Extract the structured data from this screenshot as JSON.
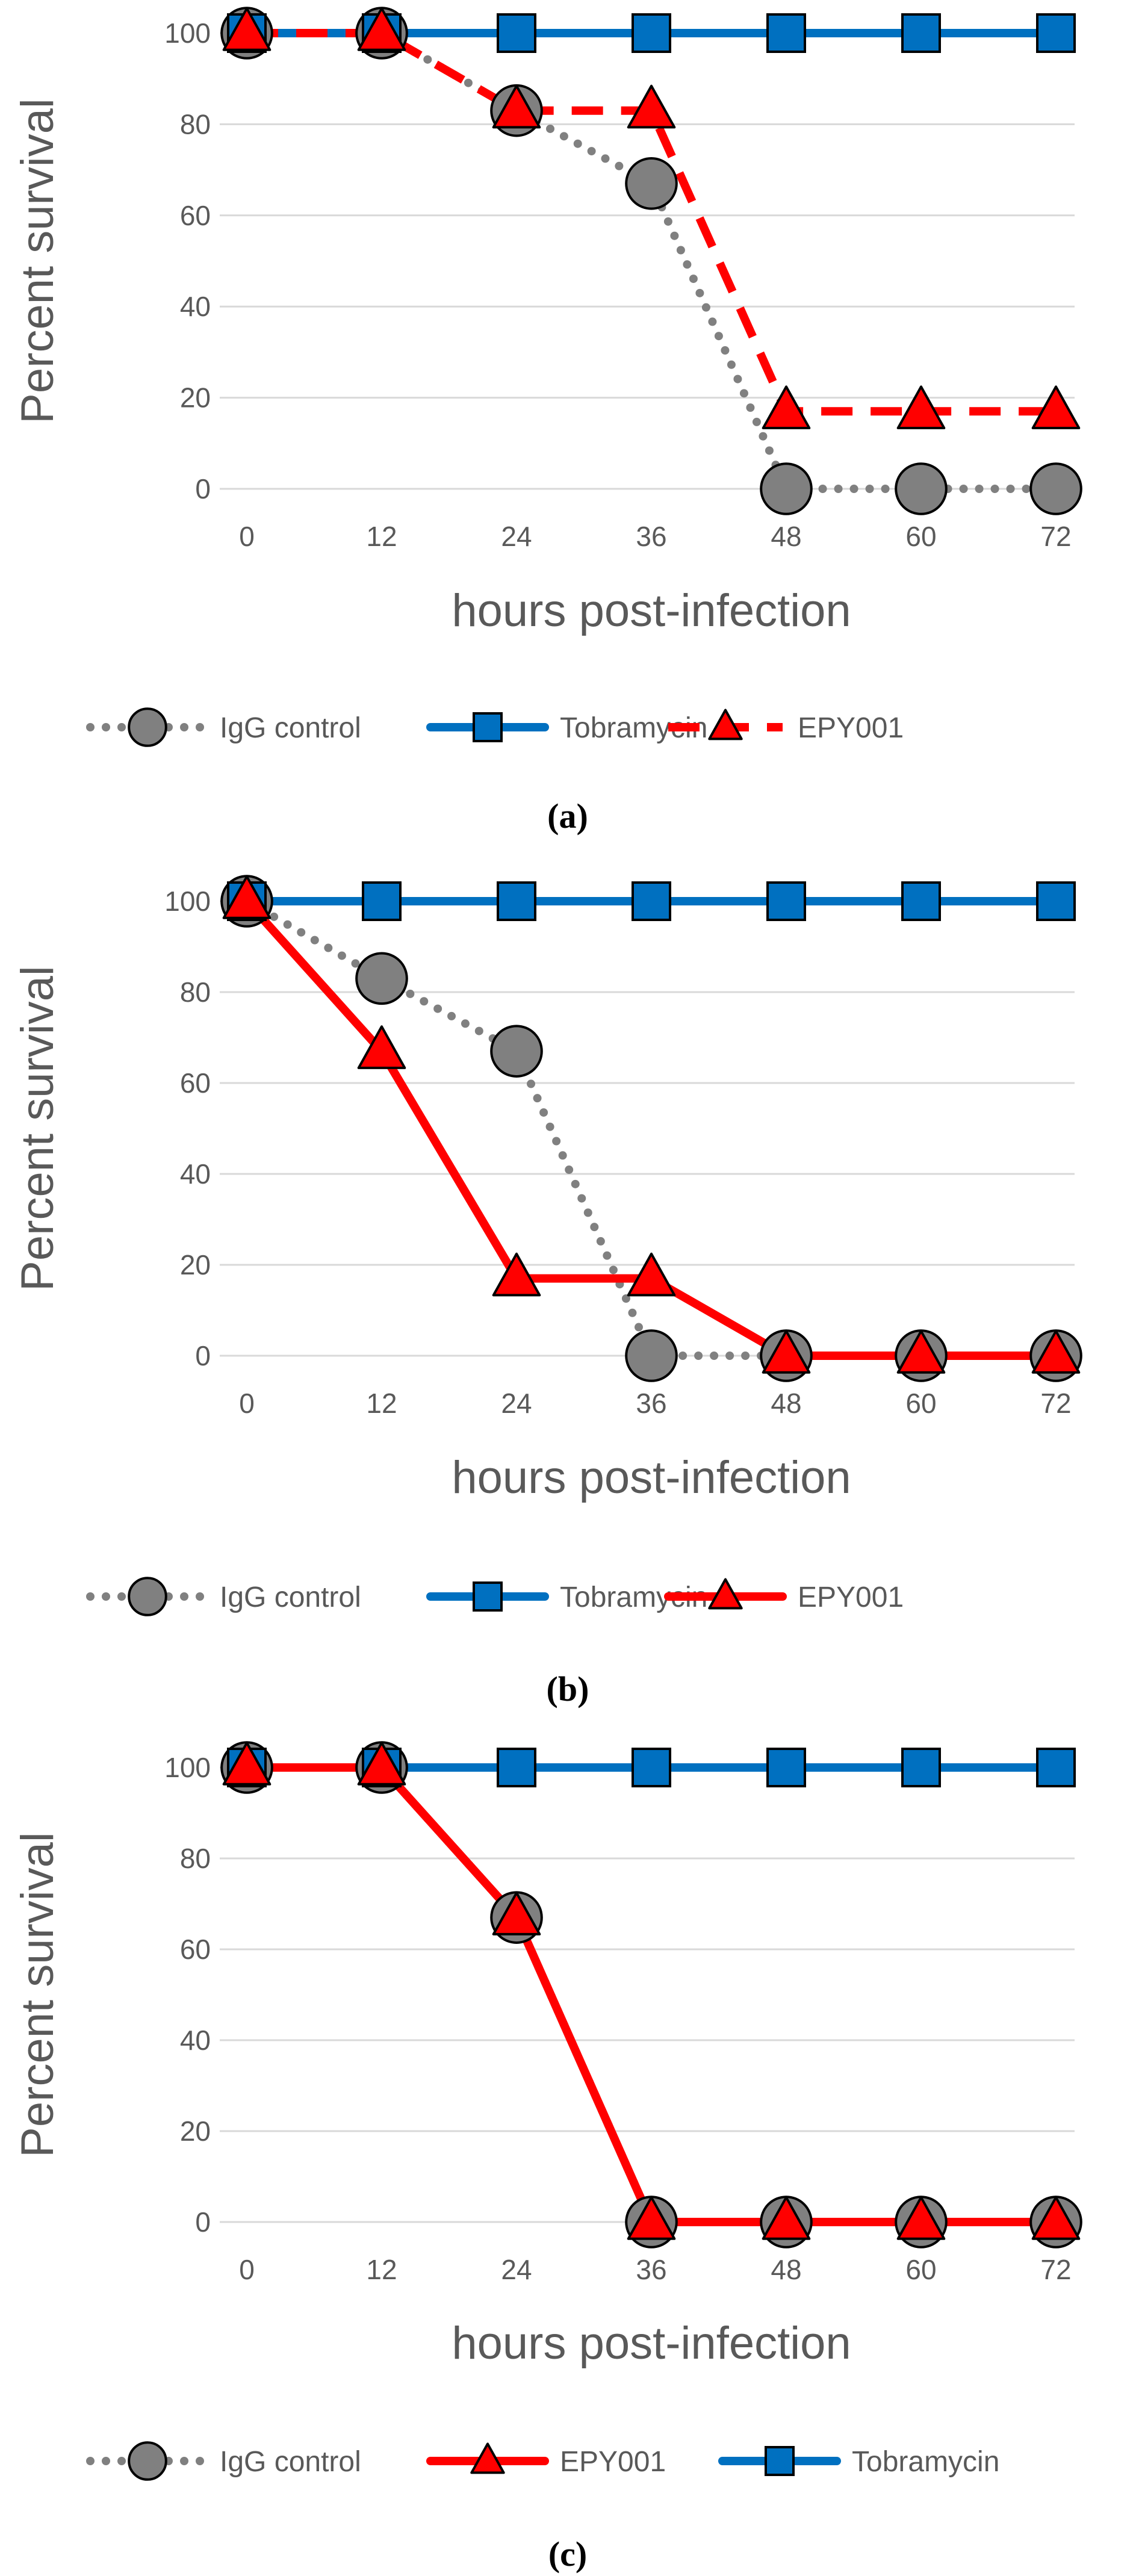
{
  "chart_data": [
    {
      "type": "line",
      "panel_label": "(a)",
      "xlabel": "hours post-infection",
      "ylabel": "Percent survival",
      "categories": [
        "0",
        "12",
        "24",
        "36",
        "48",
        "60",
        "72"
      ],
      "y_ticks": [
        "0",
        "20",
        "40",
        "60",
        "80",
        "100"
      ],
      "ylim": [
        0,
        100
      ],
      "grid": "horizontal",
      "legend_position": "bottom",
      "series": [
        {
          "name": "IgG control",
          "values": [
            100,
            100,
            83,
            67,
            0,
            0,
            0
          ],
          "color": "#808080",
          "line": "dotted",
          "marker": "circle"
        },
        {
          "name": "Tobramycin",
          "values": [
            100,
            100,
            100,
            100,
            100,
            100,
            100
          ],
          "color": "#0070C0",
          "line": "solid",
          "marker": "square"
        },
        {
          "name": "EPY001",
          "values": [
            100,
            100,
            83,
            83,
            17,
            17,
            17
          ],
          "color": "#FF0000",
          "line": "dashed",
          "marker": "triangle"
        }
      ],
      "legend_order": [
        "IgG control",
        "Tobramycin",
        "EPY001"
      ]
    },
    {
      "type": "line",
      "panel_label": "(b)",
      "xlabel": "hours post-infection",
      "ylabel": "Percent survival",
      "categories": [
        "0",
        "12",
        "24",
        "36",
        "48",
        "60",
        "72"
      ],
      "y_ticks": [
        "0",
        "20",
        "40",
        "60",
        "80",
        "100"
      ],
      "ylim": [
        0,
        100
      ],
      "grid": "horizontal",
      "legend_position": "bottom",
      "series": [
        {
          "name": "IgG control",
          "values": [
            100,
            83,
            67,
            0,
            0,
            0,
            0
          ],
          "color": "#808080",
          "line": "dotted",
          "marker": "circle"
        },
        {
          "name": "Tobramycin",
          "values": [
            100,
            100,
            100,
            100,
            100,
            100,
            100
          ],
          "color": "#0070C0",
          "line": "solid",
          "marker": "square"
        },
        {
          "name": "EPY001",
          "values": [
            100,
            67,
            17,
            17,
            0,
            0,
            0
          ],
          "color": "#FF0000",
          "line": "solid",
          "marker": "triangle"
        }
      ],
      "legend_order": [
        "IgG control",
        "Tobramycin",
        "EPY001"
      ]
    },
    {
      "type": "line",
      "panel_label": "(c)",
      "xlabel": "hours post-infection",
      "ylabel": "Percent survival",
      "categories": [
        "0",
        "12",
        "24",
        "36",
        "48",
        "60",
        "72"
      ],
      "y_ticks": [
        "0",
        "20",
        "40",
        "60",
        "80",
        "100"
      ],
      "ylim": [
        0,
        100
      ],
      "grid": "horizontal",
      "legend_position": "bottom",
      "series": [
        {
          "name": "IgG control",
          "values": [
            100,
            100,
            67,
            0,
            0,
            0,
            0
          ],
          "color": "#808080",
          "line": "dotted",
          "marker": "circle"
        },
        {
          "name": "EPY001",
          "values": [
            100,
            100,
            67,
            0,
            0,
            0,
            0
          ],
          "color": "#FF0000",
          "line": "solid",
          "marker": "triangle"
        },
        {
          "name": "Tobramycin",
          "values": [
            100,
            100,
            100,
            100,
            100,
            100,
            100
          ],
          "color": "#0070C0",
          "line": "solid",
          "marker": "square"
        }
      ],
      "legend_order": [
        "IgG control",
        "EPY001",
        "Tobramycin"
      ]
    }
  ]
}
